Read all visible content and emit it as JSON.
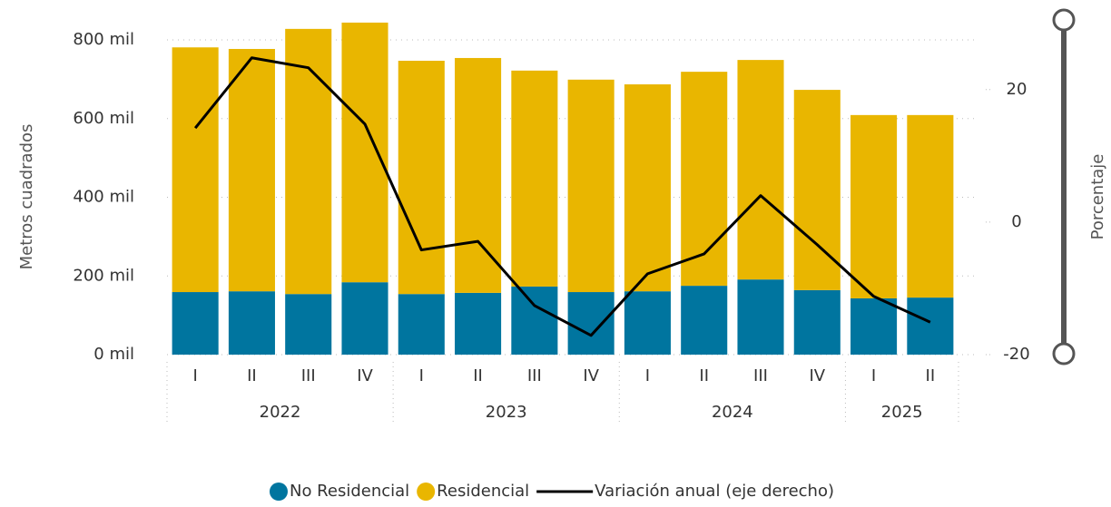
{
  "chart_data": {
    "type": "bar",
    "stacked": true,
    "y_label": "Metros cuadrados",
    "y2_label": "Porcentaje",
    "groups": [
      {
        "name": "2022",
        "categories": [
          "I",
          "II",
          "III",
          "IV"
        ]
      },
      {
        "name": "2023",
        "categories": [
          "I",
          "II",
          "III",
          "IV"
        ]
      },
      {
        "name": "2024",
        "categories": [
          "I",
          "II",
          "III",
          "IV"
        ]
      },
      {
        "name": "2025",
        "categories": [
          "I",
          "II"
        ]
      }
    ],
    "series": [
      {
        "name": "No Residencial",
        "type": "bar",
        "color": "#00759f",
        "values": [
          159000,
          161000,
          154000,
          184000,
          154000,
          157000,
          173000,
          159000,
          161000,
          175000,
          191000,
          164000,
          143000,
          145000
        ]
      },
      {
        "name": "Residencial",
        "type": "bar",
        "color": "#e9b600",
        "values": [
          622000,
          616000,
          674000,
          660000,
          593000,
          597000,
          549000,
          540000,
          526000,
          544000,
          558000,
          509000,
          466000,
          464000
        ]
      },
      {
        "name": "Variación anual (eje derecho)",
        "type": "line",
        "axis": "y2",
        "color": "#000000",
        "values": [
          14.2,
          24.8,
          23.3,
          14.8,
          -4.2,
          -2.9,
          -12.6,
          -17.1,
          -7.8,
          -4.8,
          4.0,
          -3.4,
          -11.2,
          -15.1
        ]
      }
    ],
    "ylim": [
      0,
      800000
    ],
    "yticks": [
      {
        "value": 0,
        "label": "0 mil"
      },
      {
        "value": 200000,
        "label": "200 mil"
      },
      {
        "value": 400000,
        "label": "400 mil"
      },
      {
        "value": 600000,
        "label": "600 mil"
      },
      {
        "value": 800000,
        "label": "800 mil"
      }
    ],
    "y2lim": [
      -20,
      27.5
    ],
    "y2ticks": [
      -20,
      0,
      20
    ],
    "grid": true,
    "legend": "bottom"
  }
}
